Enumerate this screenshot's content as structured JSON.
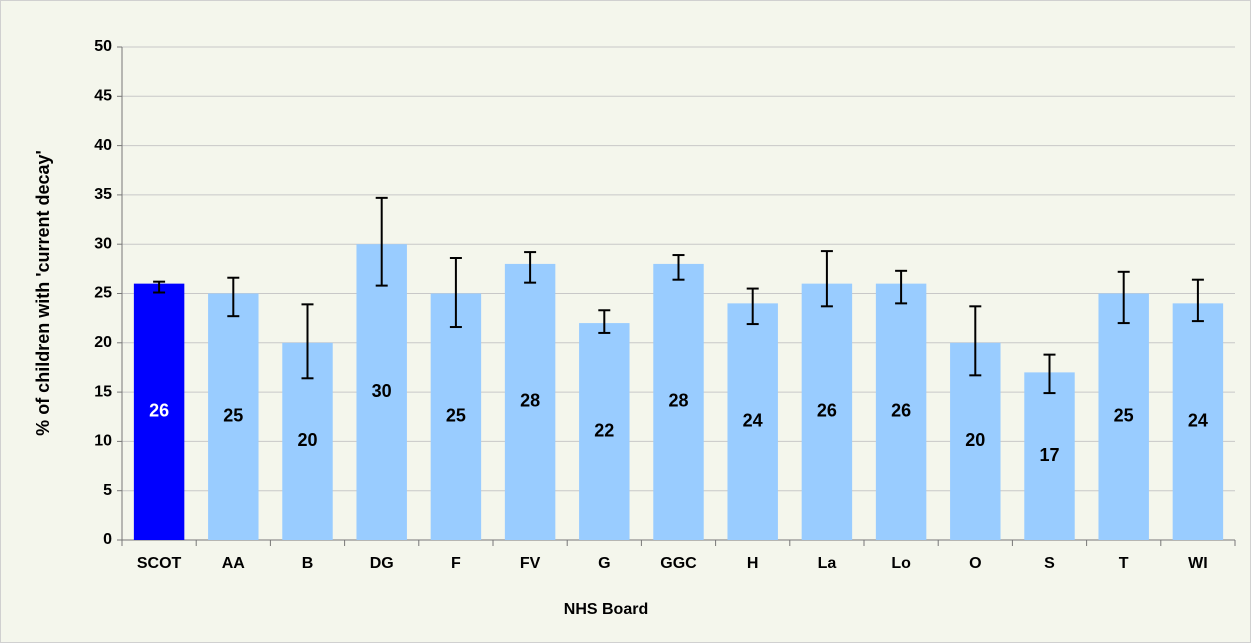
{
  "chart_data": {
    "type": "bar",
    "x_label": "NHS Board",
    "y_label": "% of children with 'current decay'",
    "categories": [
      "SCOT",
      "AA",
      "B",
      "DG",
      "F",
      "FV",
      "G",
      "GGC",
      "H",
      "La",
      "Lo",
      "O",
      "S",
      "T",
      "WI"
    ],
    "values": [
      26,
      25,
      20,
      30,
      25,
      28,
      22,
      28,
      24,
      26,
      26,
      20,
      17,
      25,
      24
    ],
    "ci_low": [
      25.1,
      22.7,
      16.4,
      25.8,
      21.6,
      26.1,
      21.0,
      26.4,
      21.9,
      23.7,
      24.0,
      16.7,
      14.9,
      22.0,
      22.2
    ],
    "ci_high": [
      26.2,
      26.6,
      23.9,
      34.7,
      28.6,
      29.2,
      23.3,
      28.9,
      25.5,
      29.3,
      27.3,
      23.7,
      18.8,
      27.2,
      26.4
    ],
    "colors": [
      "#0000ff",
      "#99ccff",
      "#99ccff",
      "#99ccff",
      "#99ccff",
      "#99ccff",
      "#99ccff",
      "#99ccff",
      "#99ccff",
      "#99ccff",
      "#99ccff",
      "#99ccff",
      "#99ccff",
      "#99ccff",
      "#99ccff"
    ],
    "value_label_colors": [
      "#ffffff",
      "#000000",
      "#000000",
      "#000000",
      "#000000",
      "#000000",
      "#000000",
      "#000000",
      "#000000",
      "#000000",
      "#000000",
      "#000000",
      "#000000",
      "#000000",
      "#000000"
    ],
    "ylim": [
      0,
      50
    ],
    "yticks": [
      0,
      5,
      10,
      15,
      20,
      25,
      30,
      35,
      40,
      45,
      50
    ],
    "grid": true
  }
}
